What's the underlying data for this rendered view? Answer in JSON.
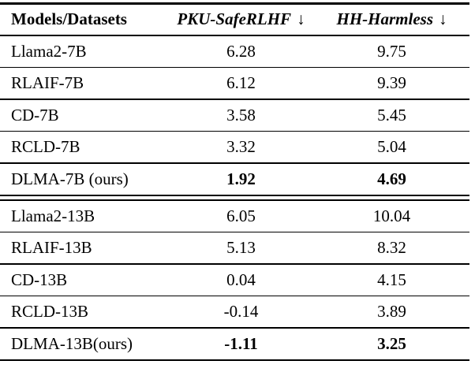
{
  "page": {
    "background": "#ffffff"
  },
  "table": {
    "colors": {
      "text": "#000000",
      "rule": "#000000",
      "background": "#ffffff"
    },
    "header": {
      "models_label": "Models/Datasets",
      "col2_label": "PKU-SafeRLHF",
      "col3_label": "HH-Harmless",
      "down_arrow": "↓"
    },
    "sections": [
      {
        "rows": [
          {
            "model": "Llama2-7B",
            "pku": "6.28",
            "hh": "9.75"
          },
          {
            "model": "RLAIF-7B",
            "pku": "6.12",
            "hh": "9.39"
          },
          {
            "model": "CD-7B",
            "pku": "3.58",
            "hh": "5.45"
          },
          {
            "model": "RCLD-7B",
            "pku": "3.32",
            "hh": "5.04"
          },
          {
            "model": "DLMA-7B (ours)",
            "pku": "1.92",
            "hh": "4.69"
          }
        ]
      },
      {
        "rows": [
          {
            "model": "Llama2-13B",
            "pku": "6.05",
            "hh": "10.04"
          },
          {
            "model": "RLAIF-13B",
            "pku": "5.13",
            "hh": "8.32"
          },
          {
            "model": "CD-13B",
            "pku": "0.04",
            "hh": "4.15"
          },
          {
            "model": "RCLD-13B",
            "pku": "-0.14",
            "hh": "3.89"
          },
          {
            "model": "DLMA-13B(ours)",
            "pku": "-1.11",
            "hh": "3.25"
          }
        ]
      }
    ]
  }
}
